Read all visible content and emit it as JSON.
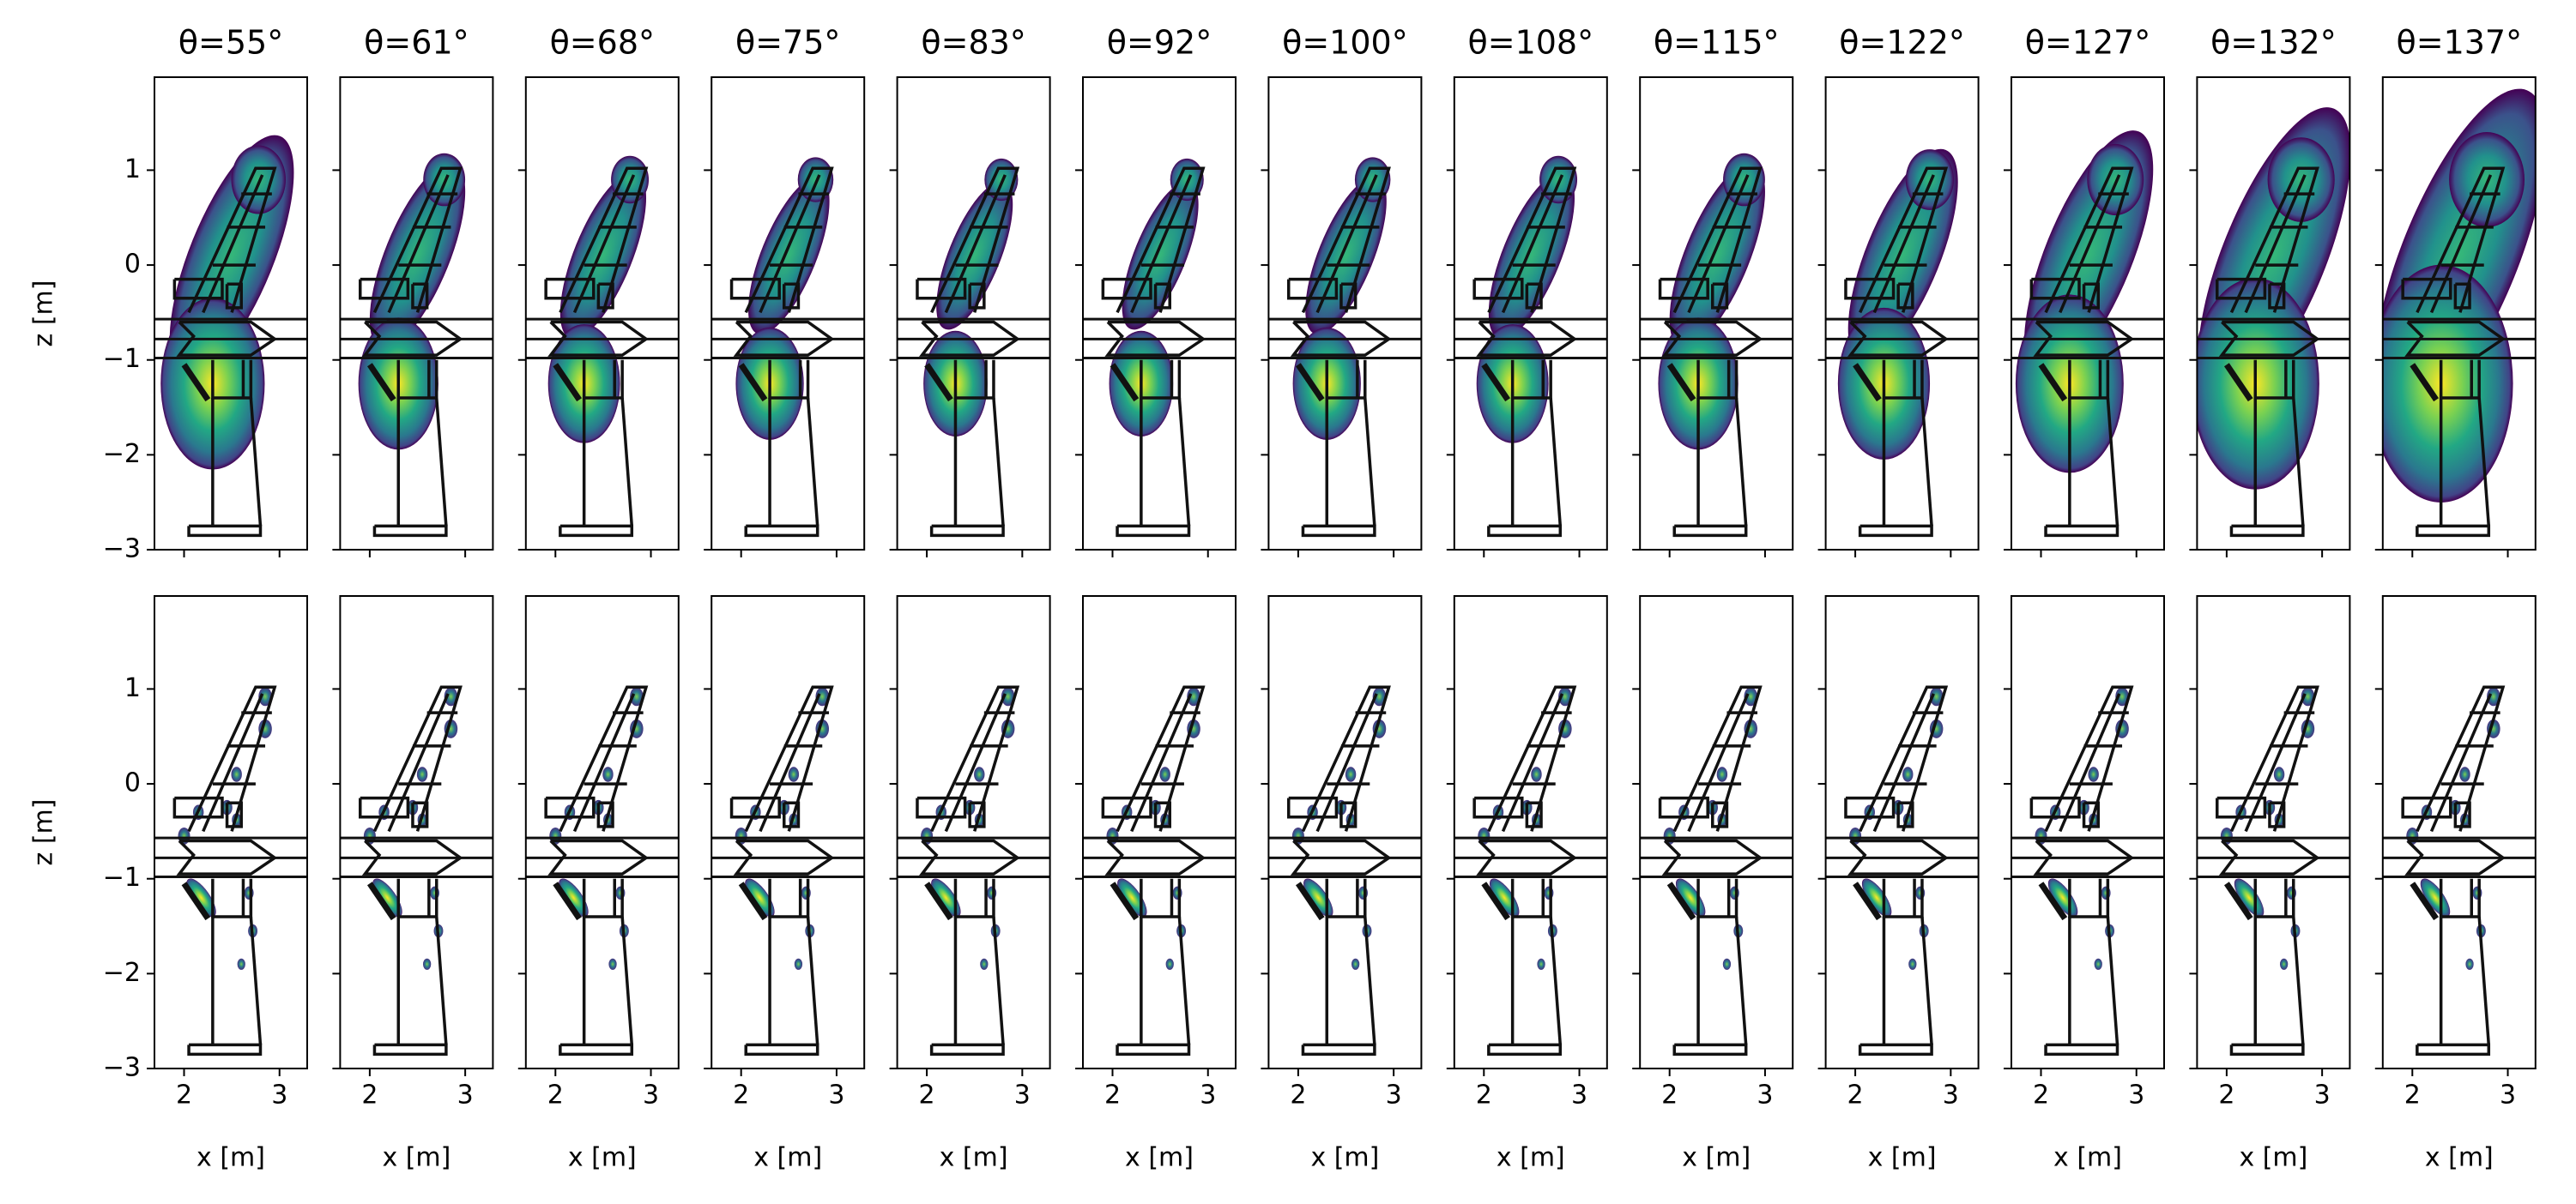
{
  "chart_data": [
    {
      "type": "heatmap",
      "title": "θ=55°",
      "ylabel": "z [m]",
      "xlim": [
        1.69,
        3.29
      ],
      "ylim": [
        -3,
        1.98
      ],
      "xticks": [
        2,
        3
      ],
      "yticks": [
        {
          "value": -3,
          "label": "−3"
        },
        {
          "value": -2,
          "label": "−2"
        },
        {
          "value": -1,
          "label": "−1"
        },
        0,
        1
      ]
    },
    {
      "type": "heatmap",
      "title": "θ=61°",
      "xlim": [
        1.69,
        3.29
      ],
      "ylim": [
        -3,
        1.98
      ],
      "xticks": [
        2,
        3
      ],
      "yticks": [
        -3,
        -2,
        -1,
        0,
        1
      ]
    },
    {
      "type": "heatmap",
      "title": "θ=68°",
      "xlim": [
        1.69,
        3.29
      ],
      "ylim": [
        -3,
        1.98
      ],
      "xticks": [
        2,
        3
      ],
      "yticks": [
        -3,
        -2,
        -1,
        0,
        1
      ]
    },
    {
      "type": "heatmap",
      "title": "θ=75°",
      "xlim": [
        1.69,
        3.29
      ],
      "ylim": [
        -3,
        1.98
      ],
      "xticks": [
        2,
        3
      ],
      "yticks": [
        -3,
        -2,
        -1,
        0,
        1
      ]
    },
    {
      "type": "heatmap",
      "title": "θ=83°",
      "xlim": [
        1.69,
        3.29
      ],
      "ylim": [
        -3,
        1.98
      ],
      "xticks": [
        2,
        3
      ],
      "yticks": [
        -3,
        -2,
        -1,
        0,
        1
      ]
    },
    {
      "type": "heatmap",
      "title": "θ=92°",
      "xlim": [
        1.69,
        3.29
      ],
      "ylim": [
        -3,
        1.98
      ],
      "xticks": [
        2,
        3
      ],
      "yticks": [
        -3,
        -2,
        -1,
        0,
        1
      ]
    },
    {
      "type": "heatmap",
      "title": "θ=100°",
      "xlim": [
        1.69,
        3.29
      ],
      "ylim": [
        -3,
        1.98
      ],
      "xticks": [
        2,
        3
      ],
      "yticks": [
        -3,
        -2,
        -1,
        0,
        1
      ]
    },
    {
      "type": "heatmap",
      "title": "θ=108°",
      "xlim": [
        1.69,
        3.29
      ],
      "ylim": [
        -3,
        1.98
      ],
      "xticks": [
        2,
        3
      ],
      "yticks": [
        -3,
        -2,
        -1,
        0,
        1
      ]
    },
    {
      "type": "heatmap",
      "title": "θ=115°",
      "xlim": [
        1.69,
        3.29
      ],
      "ylim": [
        -3,
        1.98
      ],
      "xticks": [
        2,
        3
      ],
      "yticks": [
        -3,
        -2,
        -1,
        0,
        1
      ]
    },
    {
      "type": "heatmap",
      "title": "θ=122°",
      "xlim": [
        1.69,
        3.29
      ],
      "ylim": [
        -3,
        1.98
      ],
      "xticks": [
        2,
        3
      ],
      "yticks": [
        -3,
        -2,
        -1,
        0,
        1
      ]
    },
    {
      "type": "heatmap",
      "title": "θ=127°",
      "xlim": [
        1.69,
        3.29
      ],
      "ylim": [
        -3,
        1.98
      ],
      "xticks": [
        2,
        3
      ],
      "yticks": [
        -3,
        -2,
        -1,
        0,
        1
      ]
    },
    {
      "type": "heatmap",
      "title": "θ=132°",
      "xlim": [
        1.69,
        3.29
      ],
      "ylim": [
        -3,
        1.98
      ],
      "xticks": [
        2,
        3
      ],
      "yticks": [
        -3,
        -2,
        -1,
        0,
        1
      ]
    },
    {
      "type": "heatmap",
      "title": "θ=137°",
      "xlim": [
        1.69,
        3.29
      ],
      "ylim": [
        -3,
        1.98
      ],
      "xticks": [
        2,
        3
      ],
      "yticks": [
        -3,
        -2,
        -1,
        0,
        1
      ]
    },
    {
      "type": "heatmap",
      "xlabel": "x [m]",
      "ylabel": "z [m]",
      "xlim": [
        1.69,
        3.29
      ],
      "ylim": [
        -3,
        1.98
      ],
      "xticks": [
        2,
        3
      ],
      "yticks": [
        {
          "value": -3,
          "label": "−3"
        },
        {
          "value": -2,
          "label": "−2"
        },
        {
          "value": -1,
          "label": "−1"
        },
        0,
        1
      ]
    },
    {
      "type": "heatmap",
      "xlabel": "x [m]",
      "xlim": [
        1.69,
        3.29
      ],
      "ylim": [
        -3,
        1.98
      ],
      "xticks": [
        2,
        3
      ],
      "yticks": [
        -3,
        -2,
        -1,
        0,
        1
      ]
    },
    {
      "type": "heatmap",
      "xlabel": "x [m]",
      "xlim": [
        1.69,
        3.29
      ],
      "ylim": [
        -3,
        1.98
      ],
      "xticks": [
        2,
        3
      ],
      "yticks": [
        -3,
        -2,
        -1,
        0,
        1
      ]
    },
    {
      "type": "heatmap",
      "xlabel": "x [m]",
      "xlim": [
        1.69,
        3.29
      ],
      "ylim": [
        -3,
        1.98
      ],
      "xticks": [
        2,
        3
      ],
      "yticks": [
        -3,
        -2,
        -1,
        0,
        1
      ]
    },
    {
      "type": "heatmap",
      "xlabel": "x [m]",
      "xlim": [
        1.69,
        3.29
      ],
      "ylim": [
        -3,
        1.98
      ],
      "xticks": [
        2,
        3
      ],
      "yticks": [
        -3,
        -2,
        -1,
        0,
        1
      ]
    },
    {
      "type": "heatmap",
      "xlabel": "x [m]",
      "xlim": [
        1.69,
        3.29
      ],
      "ylim": [
        -3,
        1.98
      ],
      "xticks": [
        2,
        3
      ],
      "yticks": [
        -3,
        -2,
        -1,
        0,
        1
      ]
    },
    {
      "type": "heatmap",
      "xlabel": "x [m]",
      "xlim": [
        1.69,
        3.29
      ],
      "ylim": [
        -3,
        1.98
      ],
      "xticks": [
        2,
        3
      ],
      "yticks": [
        -3,
        -2,
        -1,
        0,
        1
      ]
    },
    {
      "type": "heatmap",
      "xlabel": "x [m]",
      "xlim": [
        1.69,
        3.29
      ],
      "ylim": [
        -3,
        1.98
      ],
      "xticks": [
        2,
        3
      ],
      "yticks": [
        -3,
        -2,
        -1,
        0,
        1
      ]
    },
    {
      "type": "heatmap",
      "xlabel": "x [m]",
      "xlim": [
        1.69,
        3.29
      ],
      "ylim": [
        -3,
        1.98
      ],
      "xticks": [
        2,
        3
      ],
      "yticks": [
        -3,
        -2,
        -1,
        0,
        1
      ]
    },
    {
      "type": "heatmap",
      "xlabel": "x [m]",
      "xlim": [
        1.69,
        3.29
      ],
      "ylim": [
        -3,
        1.98
      ],
      "xticks": [
        2,
        3
      ],
      "yticks": [
        -3,
        -2,
        -1,
        0,
        1
      ]
    },
    {
      "type": "heatmap",
      "xlabel": "x [m]",
      "xlim": [
        1.69,
        3.29
      ],
      "ylim": [
        -3,
        1.98
      ],
      "xticks": [
        2,
        3
      ],
      "yticks": [
        -3,
        -2,
        -1,
        0,
        1
      ]
    },
    {
      "type": "heatmap",
      "xlabel": "x [m]",
      "xlim": [
        1.69,
        3.29
      ],
      "ylim": [
        -3,
        1.98
      ],
      "xticks": [
        2,
        3
      ],
      "yticks": [
        -3,
        -2,
        -1,
        0,
        1
      ]
    },
    {
      "type": "heatmap",
      "xlabel": "x [m]",
      "xlim": [
        1.69,
        3.29
      ],
      "ylim": [
        -3,
        1.98
      ],
      "xticks": [
        2,
        3
      ],
      "yticks": [
        -3,
        -2,
        -1,
        0,
        1
      ]
    }
  ]
}
